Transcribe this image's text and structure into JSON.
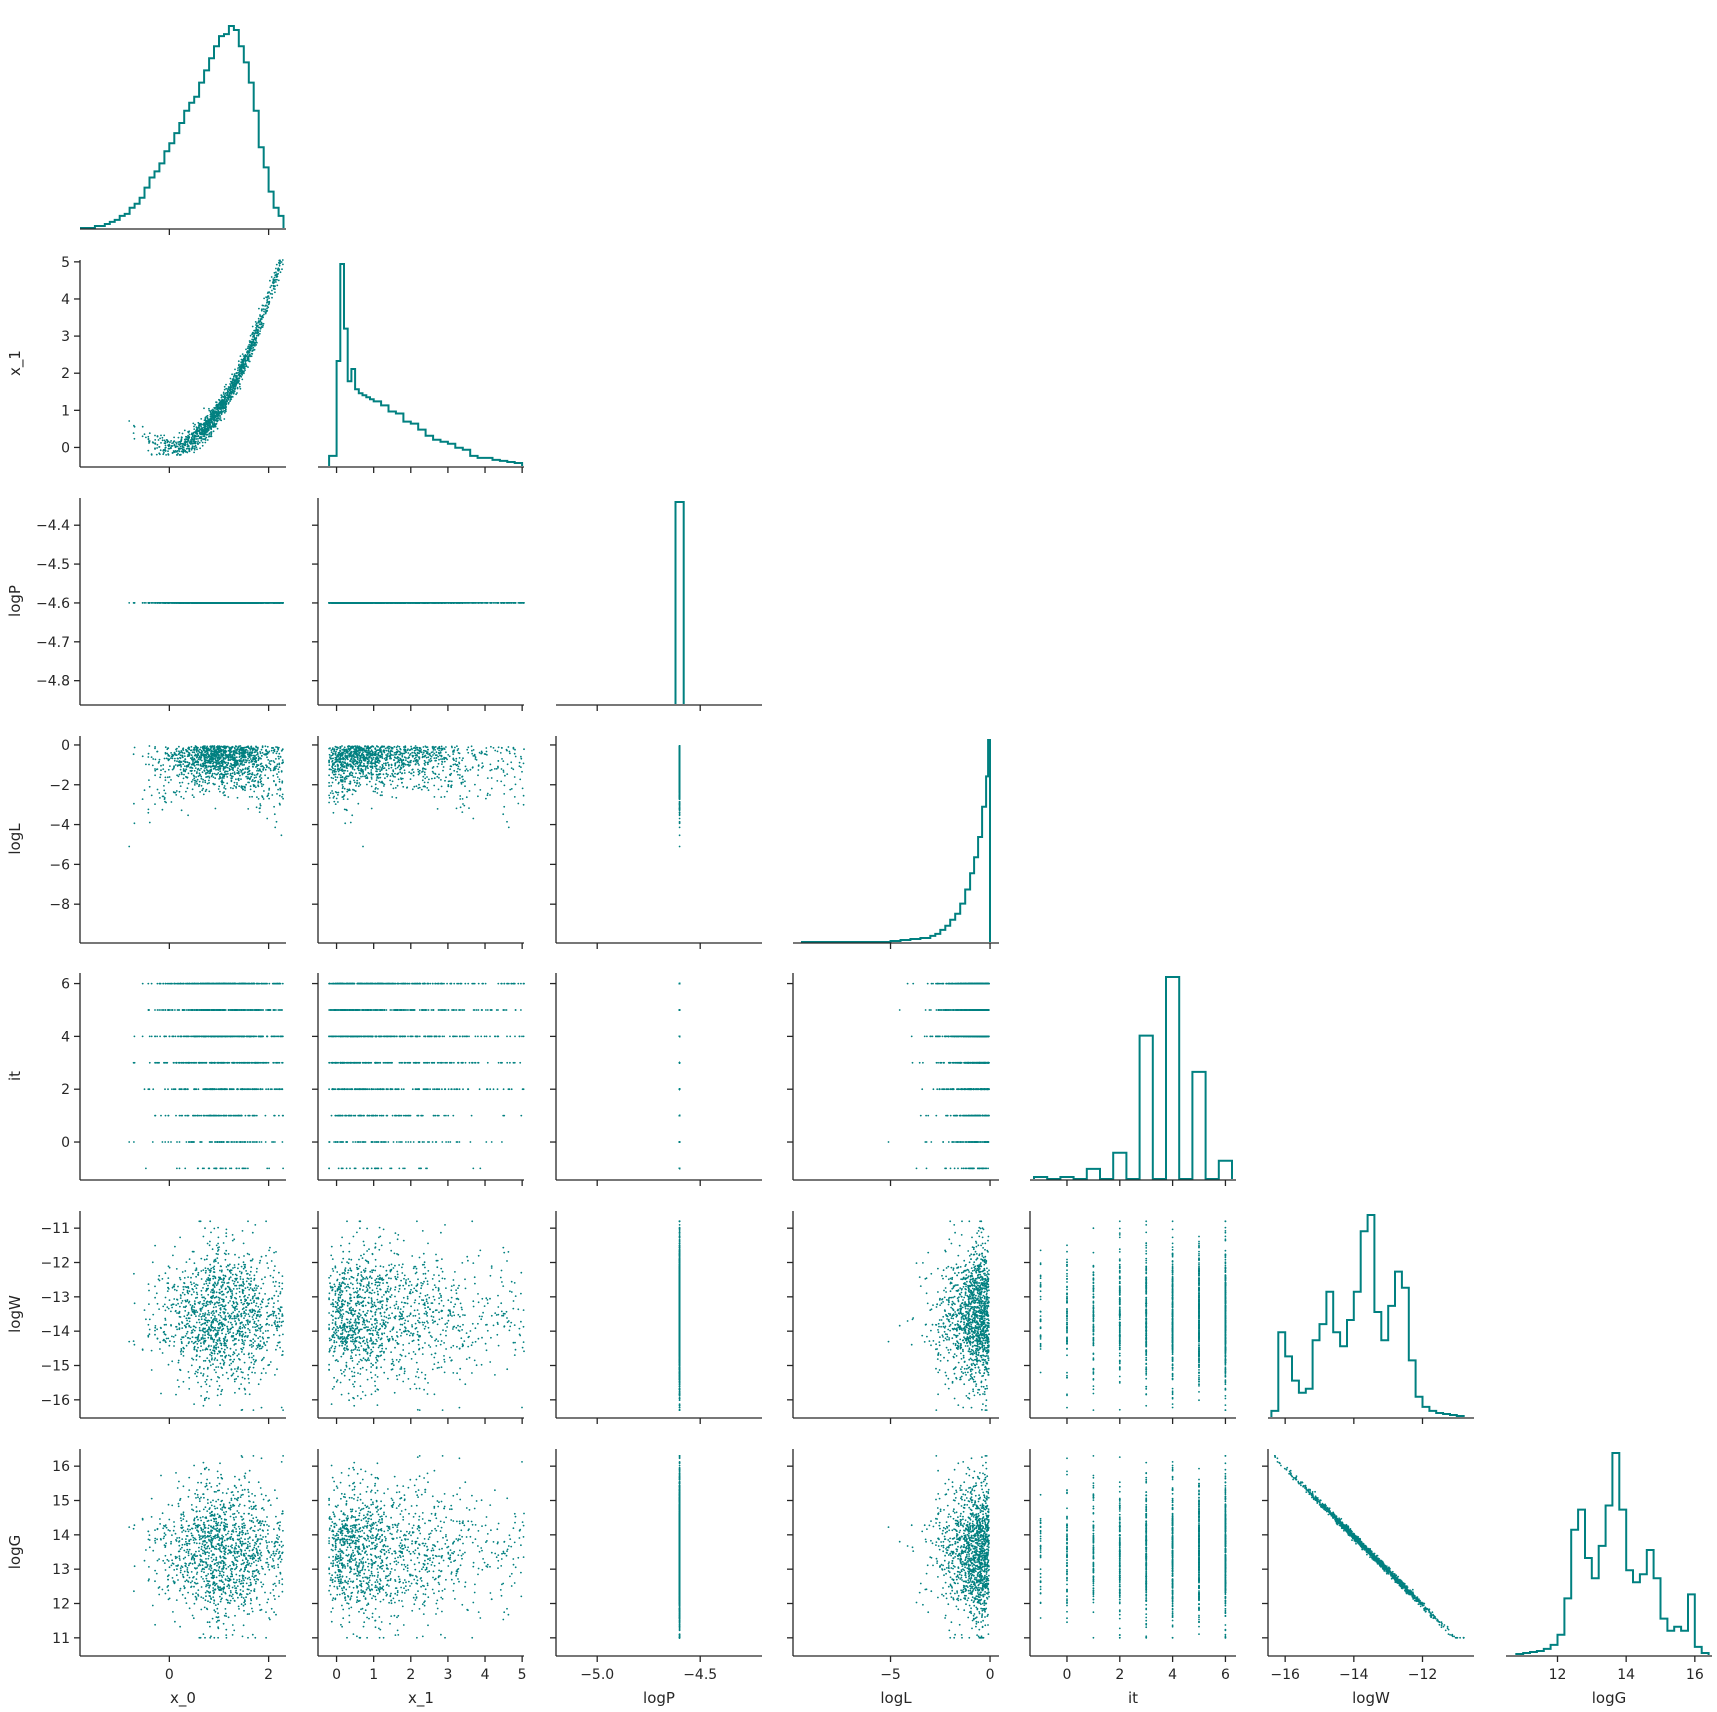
{
  "chart_data": {
    "type": "corner",
    "description_hint": "",
    "variables": [
      {
        "name": "x_0",
        "label": "x_0",
        "range": [
          -1.8,
          2.35
        ],
        "ticks": [
          0,
          2
        ],
        "tick_labels": [
          "0",
          "2"
        ]
      },
      {
        "name": "x_1",
        "label": "x_1",
        "range": [
          -0.5,
          5.05
        ],
        "ticks": [
          0,
          1,
          2,
          3,
          4,
          5
        ],
        "tick_labels": [
          "0",
          "1",
          "2",
          "3",
          "4",
          "5"
        ]
      },
      {
        "name": "logP",
        "label": "logP",
        "range": [
          -4.86,
          -4.33
        ],
        "ticks": [
          -4.8,
          -4.7,
          -4.6,
          -4.5,
          -4.4
        ],
        "tick_labels": [
          "−4.8",
          "−4.7",
          "−4.6",
          "−4.5",
          "−4.4"
        ]
      },
      {
        "name": "logL",
        "label": "logL",
        "range": [
          -9.9,
          0.45
        ],
        "ticks": [
          -8,
          -6,
          -4,
          -2,
          0
        ],
        "tick_labels": [
          "−8",
          "−6",
          "−4",
          "−2",
          "0"
        ]
      },
      {
        "name": "it",
        "label": "it",
        "range": [
          -1.4,
          6.4
        ],
        "ticks": [
          0,
          2,
          4,
          6
        ],
        "tick_labels": [
          "0",
          "2",
          "4",
          "6"
        ]
      },
      {
        "name": "logW",
        "label": "logW",
        "range": [
          -16.5,
          -10.5
        ],
        "ticks": [
          -16,
          -15,
          -14,
          -13,
          -12,
          -11
        ],
        "tick_labels": [
          "−16",
          "−15",
          "−14",
          "−13",
          "−12",
          "−11"
        ]
      },
      {
        "name": "logG",
        "label": "logG",
        "range": [
          10.5,
          16.5
        ],
        "ticks": [
          11,
          12,
          13,
          14,
          15,
          16
        ],
        "tick_labels": [
          "11",
          "12",
          "13",
          "14",
          "15",
          "16"
        ]
      }
    ],
    "x_tick_overrides": {
      "logP": {
        "ticks": [
          -5.0,
          -4.5
        ],
        "tick_labels": [
          "−5.0",
          "−4.5"
        ],
        "range": [
          -5.2,
          -4.2
        ]
      },
      "logL": {
        "ticks": [
          -5,
          0
        ],
        "tick_labels": [
          "−5",
          "0"
        ]
      },
      "logW": {
        "ticks": [
          -16,
          -14,
          -12
        ],
        "tick_labels": [
          "−16",
          "−14",
          "−12"
        ]
      },
      "logG": {
        "ticks": [
          12,
          14,
          16
        ],
        "tick_labels": [
          "12",
          "14",
          "16"
        ]
      }
    },
    "marginals": {
      "x_0": {
        "bins": [
          -1.8,
          -1.7,
          -1.6,
          -1.5,
          -1.4,
          -1.3,
          -1.2,
          -1.1,
          -1.0,
          -0.9,
          -0.8,
          -0.7,
          -0.6,
          -0.5,
          -0.4,
          -0.3,
          -0.2,
          -0.1,
          0.0,
          0.1,
          0.2,
          0.3,
          0.4,
          0.5,
          0.6,
          0.7,
          0.8,
          0.9,
          1.0,
          1.1,
          1.2,
          1.3,
          1.4,
          1.5,
          1.6,
          1.7,
          1.8,
          1.9,
          2.0,
          2.1,
          2.2,
          2.3
        ],
        "counts": [
          0.0,
          0.0,
          0.0,
          0.01,
          0.01,
          0.02,
          0.03,
          0.04,
          0.06,
          0.07,
          0.1,
          0.12,
          0.15,
          0.2,
          0.25,
          0.28,
          0.32,
          0.38,
          0.42,
          0.47,
          0.52,
          0.58,
          0.62,
          0.65,
          0.72,
          0.78,
          0.84,
          0.9,
          0.95,
          0.96,
          1.0,
          0.98,
          0.9,
          0.82,
          0.72,
          0.58,
          0.4,
          0.3,
          0.18,
          0.1,
          0.06
        ]
      },
      "x_1": {
        "bins": [
          -0.2,
          0.0,
          0.1,
          0.2,
          0.3,
          0.4,
          0.5,
          0.6,
          0.7,
          0.8,
          0.9,
          1.0,
          1.2,
          1.4,
          1.6,
          1.8,
          2.0,
          2.2,
          2.4,
          2.6,
          2.8,
          3.0,
          3.2,
          3.4,
          3.6,
          3.8,
          4.0,
          4.2,
          4.4,
          4.6,
          4.8,
          5.0
        ],
        "counts": [
          0.05,
          0.52,
          1.0,
          0.68,
          0.42,
          0.48,
          0.38,
          0.36,
          0.35,
          0.34,
          0.33,
          0.32,
          0.3,
          0.27,
          0.26,
          0.22,
          0.21,
          0.18,
          0.15,
          0.13,
          0.12,
          0.11,
          0.09,
          0.08,
          0.05,
          0.04,
          0.04,
          0.03,
          0.025,
          0.02,
          0.015
        ]
      },
      "logP": {
        "bins": [
          -4.62,
          -4.58
        ],
        "counts": [
          1.0
        ]
      },
      "logL": {
        "bins": [
          -9.5,
          -5,
          -4.5,
          -4,
          -3.5,
          -3,
          -2.75,
          -2.5,
          -2.25,
          -2,
          -1.75,
          -1.5,
          -1.25,
          -1,
          -0.8,
          -0.6,
          -0.4,
          -0.2,
          -0.1,
          0
        ],
        "counts": [
          0.0,
          0.005,
          0.01,
          0.015,
          0.02,
          0.03,
          0.04,
          0.06,
          0.08,
          0.11,
          0.14,
          0.19,
          0.26,
          0.34,
          0.42,
          0.52,
          0.67,
          0.82,
          1.0
        ]
      },
      "it": {
        "bins": [
          -1.25,
          -0.75,
          -0.25,
          0.25,
          0.75,
          1.25,
          1.75,
          2.25,
          2.75,
          3.25,
          3.75,
          4.25,
          4.75,
          5.25,
          5.75,
          6.25
        ],
        "counts": [
          0.01,
          0.0,
          0.01,
          0.0,
          0.05,
          0.0,
          0.13,
          0.0,
          0.71,
          0.0,
          1.0,
          0.0,
          0.53,
          0.0,
          0.09
        ]
      },
      "logW": {
        "bins": [
          -16.4,
          -16.2,
          -16.0,
          -15.8,
          -15.6,
          -15.4,
          -15.2,
          -15.0,
          -14.8,
          -14.6,
          -14.4,
          -14.2,
          -14.0,
          -13.8,
          -13.6,
          -13.4,
          -13.2,
          -13.0,
          -12.8,
          -12.6,
          -12.4,
          -12.2,
          -12.0,
          -11.8,
          -11.6,
          -11.4,
          -11.2,
          -11.0,
          -10.8
        ],
        "counts": [
          0.03,
          0.42,
          0.3,
          0.18,
          0.12,
          0.14,
          0.38,
          0.46,
          0.62,
          0.42,
          0.35,
          0.48,
          0.62,
          0.92,
          1.0,
          0.52,
          0.38,
          0.55,
          0.72,
          0.64,
          0.28,
          0.1,
          0.05,
          0.03,
          0.02,
          0.015,
          0.01,
          0.005
        ]
      },
      "logG": {
        "bins": [
          10.8,
          11.0,
          11.2,
          11.4,
          11.6,
          11.8,
          12.0,
          12.2,
          12.4,
          12.6,
          12.8,
          13.0,
          13.2,
          13.4,
          13.6,
          13.8,
          14.0,
          14.2,
          14.4,
          14.6,
          14.8,
          15.0,
          15.2,
          15.4,
          15.6,
          15.8,
          16.0,
          16.2,
          16.4
        ],
        "counts": [
          0.005,
          0.01,
          0.015,
          0.02,
          0.03,
          0.05,
          0.1,
          0.28,
          0.62,
          0.72,
          0.48,
          0.38,
          0.54,
          0.74,
          1.0,
          0.72,
          0.42,
          0.36,
          0.4,
          0.52,
          0.38,
          0.18,
          0.12,
          0.14,
          0.12,
          0.3,
          0.04,
          0.01
        ]
      }
    }
  }
}
